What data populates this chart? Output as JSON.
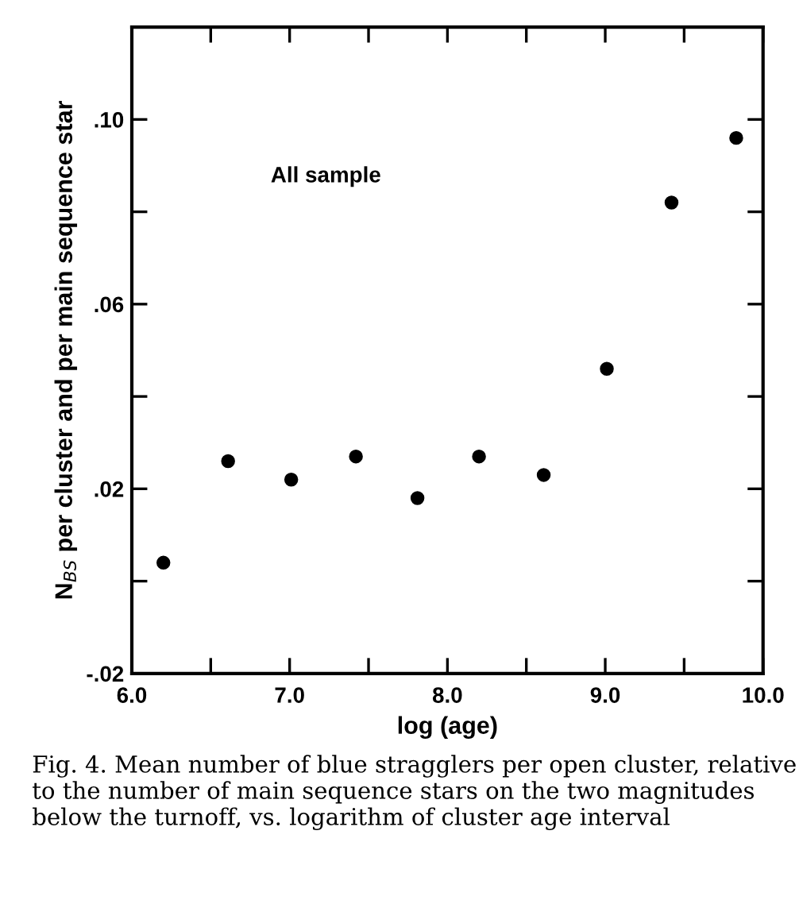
{
  "chart_data": {
    "type": "scatter",
    "xlabel": "log (age)",
    "ylabel": "N$_{BS}$ per cluster and per main sequence star",
    "x": [
      6.2,
      6.61,
      7.01,
      7.42,
      7.81,
      8.2,
      8.61,
      9.01,
      9.42,
      9.83
    ],
    "values": [
      0.004,
      0.026,
      0.022,
      0.027,
      0.018,
      0.027,
      0.023,
      0.046,
      0.082,
      0.096
    ],
    "color": "#000000",
    "marker": "circle",
    "xlim": [
      6.0,
      10.0
    ],
    "xticks": [
      {
        "value": 6.0,
        "label": "6.0"
      },
      {
        "value": 6.5,
        "label": null
      },
      {
        "value": 7.0,
        "label": "7.0"
      },
      {
        "value": 7.5,
        "label": null
      },
      {
        "value": 8.0,
        "label": "8.0"
      },
      {
        "value": 8.5,
        "label": null
      },
      {
        "value": 9.0,
        "label": "9.0"
      },
      {
        "value": 9.5,
        "label": null
      },
      {
        "value": 10.0,
        "label": "10.0"
      }
    ],
    "ylim": [
      -0.02,
      0.12
    ],
    "yticks": [
      {
        "value": -0.02,
        "label": "-.02"
      },
      {
        "value": 0.0,
        "label": null
      },
      {
        "value": 0.02,
        "label": ".02"
      },
      {
        "value": 0.04,
        "label": null
      },
      {
        "value": 0.06,
        "label": ".06"
      },
      {
        "value": 0.08,
        "label": null
      },
      {
        "value": 0.1,
        "label": ".10"
      }
    ],
    "grid": false,
    "legend": false,
    "annotations": [
      "All sample",
      "Fig. 4. Mean number of blue stragglers per open cluster, relative to the number of main sequence stars on the two magnitudes below the turnoff, vs. logarithm of cluster age interval"
    ]
  }
}
